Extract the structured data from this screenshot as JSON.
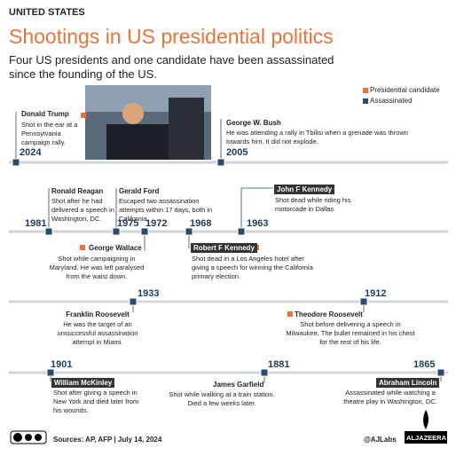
{
  "header": {
    "label": "UNITED STATES",
    "title": "Shootings in US presidential politics",
    "subtitle": "Four US presidents and one candidate have been assassinated since the founding of the US."
  },
  "legend": [
    "Presidential candidate",
    "Assassinated"
  ],
  "timeline": [
    {
      "year": "2024",
      "name": "Donald Trump",
      "text": "Shot in the ear at a Pennsylvania campaign rally."
    },
    {
      "year": "2005",
      "name": "George W. Bush",
      "text": "He was attending a rally in Tbilisi when a grenade was thrown towards him. It did not explode."
    },
    {
      "year": "1981",
      "name": "Ronald Reagan",
      "text": "Shot after he had delivered a speech in Washington, DC."
    },
    {
      "year": "1975",
      "name": "Gerald Ford",
      "text": "Escaped two assassination attempts within 17 days, both in California."
    },
    {
      "year": "1972",
      "name": "George Wallace",
      "text": "Shot while campaigning in Maryland. He was left paralysed from the waist down."
    },
    {
      "year": "1968",
      "name": "Robert F Kennedy",
      "text": "Shot dead in a Los Angeles hotel after giving a speech for winning the California primary election."
    },
    {
      "year": "1963",
      "name": "John F Kennedy",
      "text": "Shot dead while riding his motorcade in Dallas."
    },
    {
      "year": "1933",
      "name": "Franklin Roosevelt",
      "text": "He was the target of an unsuccessful assassination attempt in Miami."
    },
    {
      "year": "1912",
      "name": "Theodore Roosevelt",
      "text": "Shot before delivering a speech in Milwaukee. The bullet remained in his chest for the rest of his life."
    },
    {
      "year": "1901",
      "name": "William McKinley",
      "text": "Shot after giving a speech in New York and died later from his wounds."
    },
    {
      "year": "1881",
      "name": "James Garfield",
      "text": "Shot while walking at a train station. Died a few weeks later."
    },
    {
      "year": "1865",
      "name": "Abraham Lincoln",
      "text": "Assassinated while watching a theatre play in Washington, DC."
    }
  ],
  "footer": {
    "sources": "Sources: AP, AFP  |  July 14, 2024",
    "handle": "@AJLabs",
    "logo": "ALJAZEERA"
  }
}
